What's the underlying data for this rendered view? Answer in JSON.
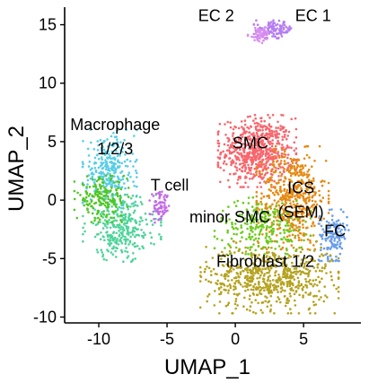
{
  "chart_data": {
    "type": "scatter",
    "title": "",
    "xlabel": "UMAP_1",
    "ylabel": "UMAP_2",
    "xlim": [
      -12.5,
      9.2
    ],
    "ylim": [
      -10.5,
      16.5
    ],
    "x_ticks": [
      -10,
      -5,
      0,
      5
    ],
    "y_ticks": [
      -10,
      -5,
      0,
      5,
      10,
      15
    ],
    "x_tick_labels": [
      "-10",
      "-5",
      "0",
      "5"
    ],
    "y_tick_labels": [
      "-10",
      "-5",
      "0",
      "5",
      "10",
      "15"
    ],
    "grid": false,
    "legend": "none",
    "clusters": [
      {
        "label": "SMC",
        "color": "#f8666d",
        "cx": 1.6,
        "cy": 4.2,
        "sx": 1.3,
        "sy": 1.4,
        "n": 650,
        "label_pos": [
          1.1,
          4.4
        ]
      },
      {
        "label": "ICS\n(SEM)",
        "color": "#e58a13",
        "cx": 4.2,
        "cy": 0.2,
        "sx": 1.2,
        "sy": 2.0,
        "n": 520,
        "label_pos": [
          4.8,
          0.6
        ]
      },
      {
        "label": "FC",
        "color": "#6b9ee8",
        "cx": 7.2,
        "cy": -3.0,
        "sx": 0.5,
        "sy": 1.0,
        "n": 140,
        "label_pos": [
          7.3,
          -3.1
        ]
      },
      {
        "label": "Fibroblast 1/2",
        "color": "#b5a21e",
        "cx": 2.5,
        "cy": -6.6,
        "sx": 2.3,
        "sy": 1.4,
        "n": 650,
        "label_pos": [
          2.2,
          -5.7
        ]
      },
      {
        "label": "minor SMC",
        "color": "#6ccb1a",
        "cx": 2.0,
        "cy": -2.2,
        "sx": 1.6,
        "sy": 1.1,
        "n": 230,
        "label_pos": [
          -0.4,
          -1.9
        ]
      },
      {
        "label": "Macrophage\n1/2/3",
        "color": "#58cde8",
        "cx": -9.2,
        "cy": 2.5,
        "sx": 0.9,
        "sy": 1.6,
        "n": 280,
        "label_pos": [
          -8.8,
          6.0
        ]
      },
      {
        "label": "",
        "color": "#4ed49a",
        "cx": -8.3,
        "cy": -2.4,
        "sx": 1.3,
        "sy": 1.3,
        "n": 300,
        "label_pos": null
      },
      {
        "label": "",
        "color": "#4fc71e",
        "cx": -9.8,
        "cy": 0.1,
        "sx": 0.9,
        "sy": 0.9,
        "n": 180,
        "label_pos": null
      },
      {
        "label": "T cell",
        "color": "#c36ae6",
        "cx": -5.5,
        "cy": -0.6,
        "sx": 0.35,
        "sy": 0.6,
        "n": 70,
        "label_pos": [
          -4.8,
          0.8
        ]
      },
      {
        "label": "EC 1",
        "color": "#b67ef2",
        "cx": 2.9,
        "cy": 14.6,
        "sx": 0.7,
        "sy": 0.35,
        "n": 110,
        "label_pos": [
          5.7,
          15.3
        ]
      },
      {
        "label": "EC 2",
        "color": "#d98df0",
        "cx": 1.8,
        "cy": 14.1,
        "sx": 0.4,
        "sy": 0.3,
        "n": 50,
        "label_pos": [
          -1.4,
          15.3
        ]
      }
    ]
  }
}
